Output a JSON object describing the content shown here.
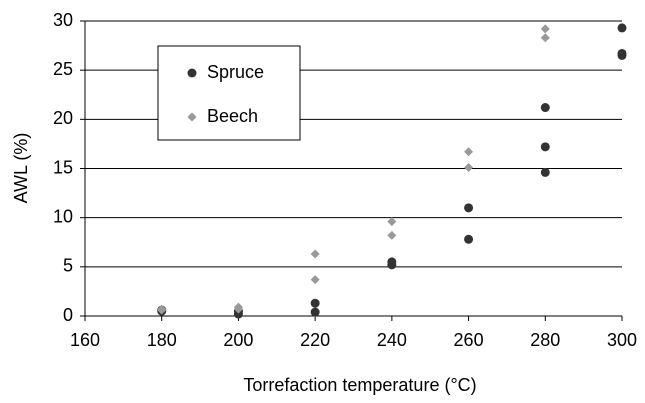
{
  "chart_data": {
    "type": "scatter",
    "xlabel": "Torrefaction temperature (°C)",
    "ylabel": "AWL (%)",
    "xlim": [
      160,
      300
    ],
    "xticks": [
      160,
      180,
      200,
      220,
      240,
      260,
      280,
      300
    ],
    "ylim": [
      0,
      30
    ],
    "yticks": [
      0,
      5,
      10,
      15,
      20,
      25,
      30
    ],
    "grid": true,
    "series": [
      {
        "name": "Spruce",
        "color": "#333333",
        "marker": "circle",
        "x": [
          180,
          180,
          200,
          200,
          220,
          220,
          240,
          240,
          260,
          260,
          280,
          280,
          280,
          300,
          300,
          300
        ],
        "values": [
          0.5,
          0.6,
          0.2,
          0.5,
          1.3,
          0.4,
          5.5,
          5.2,
          11.0,
          7.8,
          21.2,
          17.2,
          14.6,
          29.3,
          26.7,
          26.5
        ]
      },
      {
        "name": "Beech",
        "color": "#999999",
        "marker": "diamond",
        "x": [
          180,
          180,
          200,
          200,
          220,
          220,
          240,
          240,
          260,
          260,
          280,
          280
        ],
        "values": [
          0.7,
          0.6,
          0.9,
          0.7,
          6.3,
          3.7,
          9.6,
          8.2,
          16.7,
          15.1,
          29.2,
          28.3
        ]
      }
    ]
  }
}
